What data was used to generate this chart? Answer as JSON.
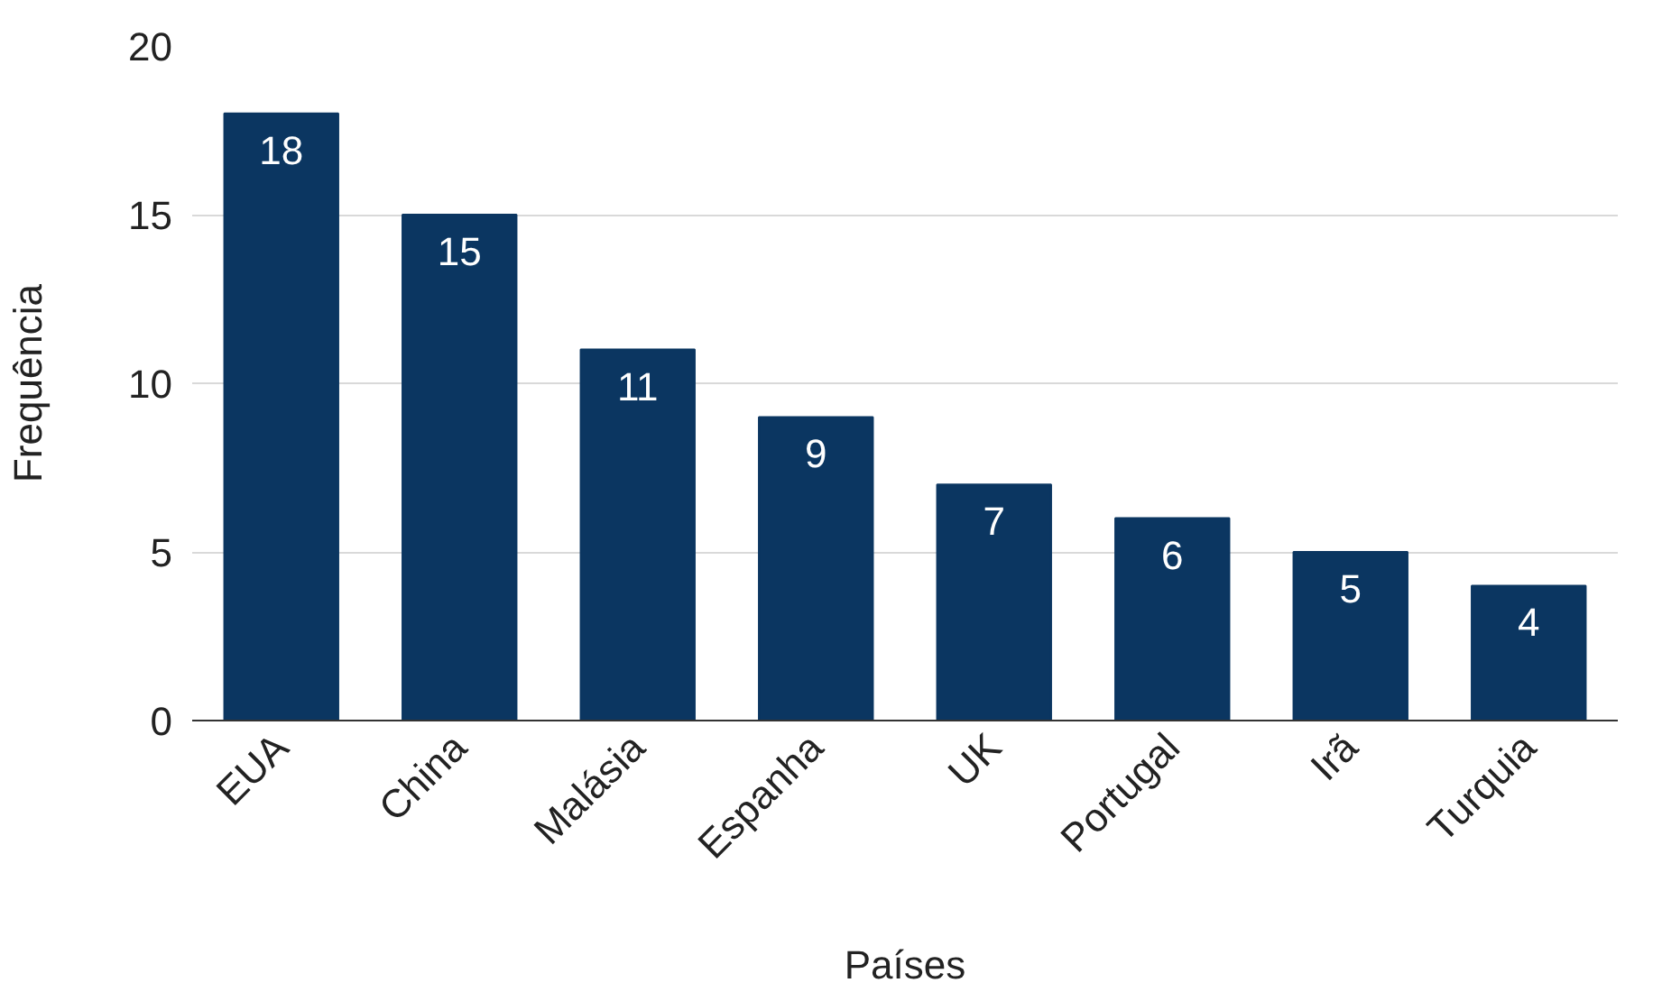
{
  "chart_data": {
    "type": "bar",
    "categories": [
      "EUA",
      "China",
      "Malásia",
      "Espanha",
      "UK",
      "Portugal",
      "Irã",
      "Turquia"
    ],
    "values": [
      18,
      15,
      11,
      9,
      7,
      6,
      5,
      4
    ],
    "color": "#0b3661",
    "xlabel": "Países",
    "ylabel": "Frequência",
    "ylim": [
      0,
      20
    ],
    "yticks": [
      0,
      5,
      10,
      15,
      20
    ],
    "grid": "y",
    "data_labels": true
  }
}
